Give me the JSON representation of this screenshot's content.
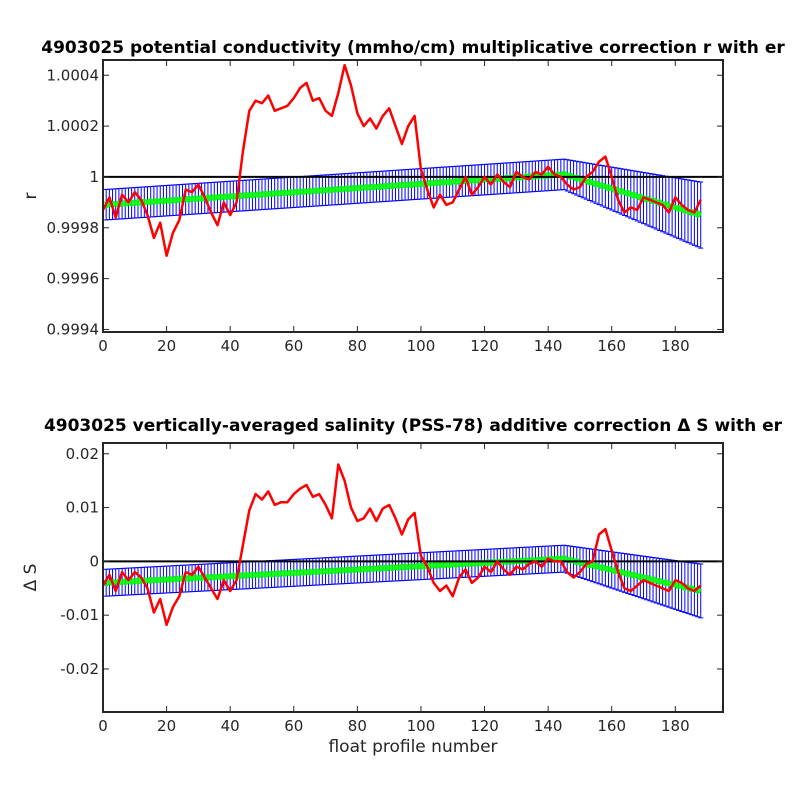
{
  "chart_data": [
    {
      "type": "line",
      "title": "4903025 potential conductivity (mmho/cm) multiplicative correction r with er",
      "xlabel": "",
      "ylabel": "r",
      "xlim": [
        0,
        195
      ],
      "ylim": [
        0.99939,
        1.00046
      ],
      "xticks": [
        0,
        20,
        40,
        60,
        80,
        100,
        120,
        140,
        160,
        180
      ],
      "xtick_labels": [
        "0",
        "20",
        "40",
        "60",
        "80",
        "100",
        "120",
        "140",
        "160",
        "180"
      ],
      "yticks": [
        0.9994,
        0.9996,
        0.9998,
        1.0,
        1.0002,
        1.0004
      ],
      "ytick_labels": [
        "0.9994",
        "0.9996",
        "0.9998",
        "1",
        "1.0002",
        "1.0004"
      ],
      "reference_line": 1.0,
      "colors": {
        "raw": "#ff0000",
        "fit": "#00ff00",
        "errorbar": "#0000ff",
        "reference": "#000000"
      },
      "fit": {
        "x": [
          0,
          145,
          188
        ],
        "y": [
          0.99989,
          1.00001,
          0.99985
        ],
        "err": [
          6e-05,
          6e-05,
          0.00013
        ]
      },
      "raw": {
        "x": [
          0,
          2,
          4,
          6,
          8,
          10,
          12,
          14,
          16,
          18,
          20,
          22,
          24,
          26,
          28,
          30,
          32,
          34,
          36,
          38,
          40,
          42,
          44,
          46,
          48,
          50,
          52,
          54,
          56,
          58,
          60,
          62,
          64,
          66,
          68,
          70,
          72,
          74,
          76,
          78,
          80,
          82,
          84,
          86,
          88,
          90,
          92,
          94,
          96,
          98,
          100,
          102,
          104,
          106,
          108,
          110,
          112,
          114,
          116,
          118,
          120,
          122,
          124,
          126,
          128,
          130,
          132,
          134,
          136,
          138,
          140,
          142,
          144,
          146,
          148,
          150,
          152,
          154,
          156,
          158,
          160,
          162,
          164,
          166,
          168,
          170,
          172,
          174,
          176,
          178,
          180,
          182,
          184,
          186,
          188
        ],
        "y": [
          0.99987,
          0.99992,
          0.99984,
          0.99993,
          0.9999,
          0.99994,
          0.99991,
          0.99985,
          0.99976,
          0.99982,
          0.99969,
          0.99978,
          0.99983,
          0.99995,
          0.99994,
          0.99997,
          0.99992,
          0.99986,
          0.99981,
          0.9999,
          0.99985,
          0.9999,
          1.0001,
          1.00026,
          1.0003,
          1.00029,
          1.00032,
          1.00026,
          1.00027,
          1.00028,
          1.00031,
          1.00035,
          1.00037,
          1.0003,
          1.00031,
          1.00026,
          1.00024,
          1.00033,
          1.00044,
          1.00036,
          1.00025,
          1.0002,
          1.00023,
          1.00019,
          1.00024,
          1.00027,
          1.0002,
          1.00013,
          1.0002,
          1.00024,
          1.00003,
          0.99995,
          0.99988,
          0.99993,
          0.99989,
          0.9999,
          0.99995,
          1.0,
          0.99993,
          0.99996,
          1.0,
          0.99997,
          1.00001,
          0.99998,
          0.99996,
          1.00002,
          1.0,
          0.99999,
          1.00002,
          1.00001,
          1.00004,
          1.00001,
          1.0,
          0.99997,
          0.99995,
          0.99996,
          1.0,
          1.00002,
          1.00006,
          1.00008,
          1.0,
          0.99991,
          0.99986,
          0.99988,
          0.99987,
          0.99992,
          0.99991,
          0.9999,
          0.99989,
          0.99986,
          0.99992,
          0.99989,
          0.99987,
          0.99986,
          0.99991
        ]
      }
    },
    {
      "type": "line",
      "title": "4903025 vertically-averaged salinity (PSS-78) additive correction Δ S with er",
      "xlabel": "float profile number",
      "ylabel": "Δ S",
      "xlim": [
        0,
        195
      ],
      "ylim": [
        -0.028,
        0.022
      ],
      "xticks": [
        0,
        20,
        40,
        60,
        80,
        100,
        120,
        140,
        160,
        180
      ],
      "xtick_labels": [
        "0",
        "20",
        "40",
        "60",
        "80",
        "100",
        "120",
        "140",
        "160",
        "180"
      ],
      "yticks": [
        -0.02,
        -0.01,
        0,
        0.01,
        0.02
      ],
      "ytick_labels": [
        "-0.02",
        "-0.01",
        "0",
        "0.01",
        "0.02"
      ],
      "reference_line": 0,
      "colors": {
        "raw": "#ff0000",
        "fit": "#00ff00",
        "errorbar": "#0000ff",
        "reference": "#000000"
      },
      "fit": {
        "x": [
          0,
          145,
          188
        ],
        "y": [
          -0.004,
          0.0005,
          -0.0055
        ],
        "err": [
          0.0025,
          0.0025,
          0.005
        ]
      },
      "raw": {
        "x": [
          0,
          2,
          4,
          6,
          8,
          10,
          12,
          14,
          16,
          18,
          20,
          22,
          24,
          26,
          28,
          30,
          32,
          34,
          36,
          38,
          40,
          42,
          44,
          46,
          48,
          50,
          52,
          54,
          56,
          58,
          60,
          62,
          64,
          66,
          68,
          70,
          72,
          74,
          76,
          78,
          80,
          82,
          84,
          86,
          88,
          90,
          92,
          94,
          96,
          98,
          100,
          102,
          104,
          106,
          108,
          110,
          112,
          114,
          116,
          118,
          120,
          122,
          124,
          126,
          128,
          130,
          132,
          134,
          136,
          138,
          140,
          142,
          144,
          146,
          148,
          150,
          152,
          154,
          156,
          158,
          160,
          162,
          164,
          166,
          168,
          170,
          172,
          174,
          176,
          178,
          180,
          182,
          184,
          186,
          188
        ],
        "y": [
          -0.0045,
          -0.0025,
          -0.0055,
          -0.002,
          -0.0035,
          -0.002,
          -0.003,
          -0.005,
          -0.0095,
          -0.007,
          -0.0118,
          -0.0085,
          -0.0065,
          -0.002,
          -0.0025,
          -0.001,
          -0.003,
          -0.005,
          -0.007,
          -0.0035,
          -0.0055,
          -0.0035,
          0.003,
          0.0095,
          0.0125,
          0.0115,
          0.013,
          0.0105,
          0.011,
          0.011,
          0.0125,
          0.0135,
          0.0142,
          0.012,
          0.0125,
          0.0105,
          0.008,
          0.018,
          0.015,
          0.01,
          0.0075,
          0.008,
          0.0098,
          0.0075,
          0.0098,
          0.0105,
          0.008,
          0.005,
          0.0078,
          0.009,
          0.001,
          -0.001,
          -0.004,
          -0.0055,
          -0.0045,
          -0.0065,
          -0.003,
          -0.0015,
          -0.004,
          -0.003,
          -0.001,
          -0.002,
          0.0,
          -0.0015,
          -0.0025,
          -0.001,
          -0.0015,
          -0.0005,
          0.0,
          -0.001,
          0.0005,
          0.0,
          0.0,
          -0.002,
          -0.003,
          -0.002,
          -0.0005,
          0.0,
          0.005,
          0.006,
          0.002,
          -0.002,
          -0.005,
          -0.0055,
          -0.0045,
          -0.0035,
          -0.004,
          -0.0045,
          -0.005,
          -0.0055,
          -0.0035,
          -0.004,
          -0.005,
          -0.0055,
          -0.0045
        ]
      }
    }
  ]
}
